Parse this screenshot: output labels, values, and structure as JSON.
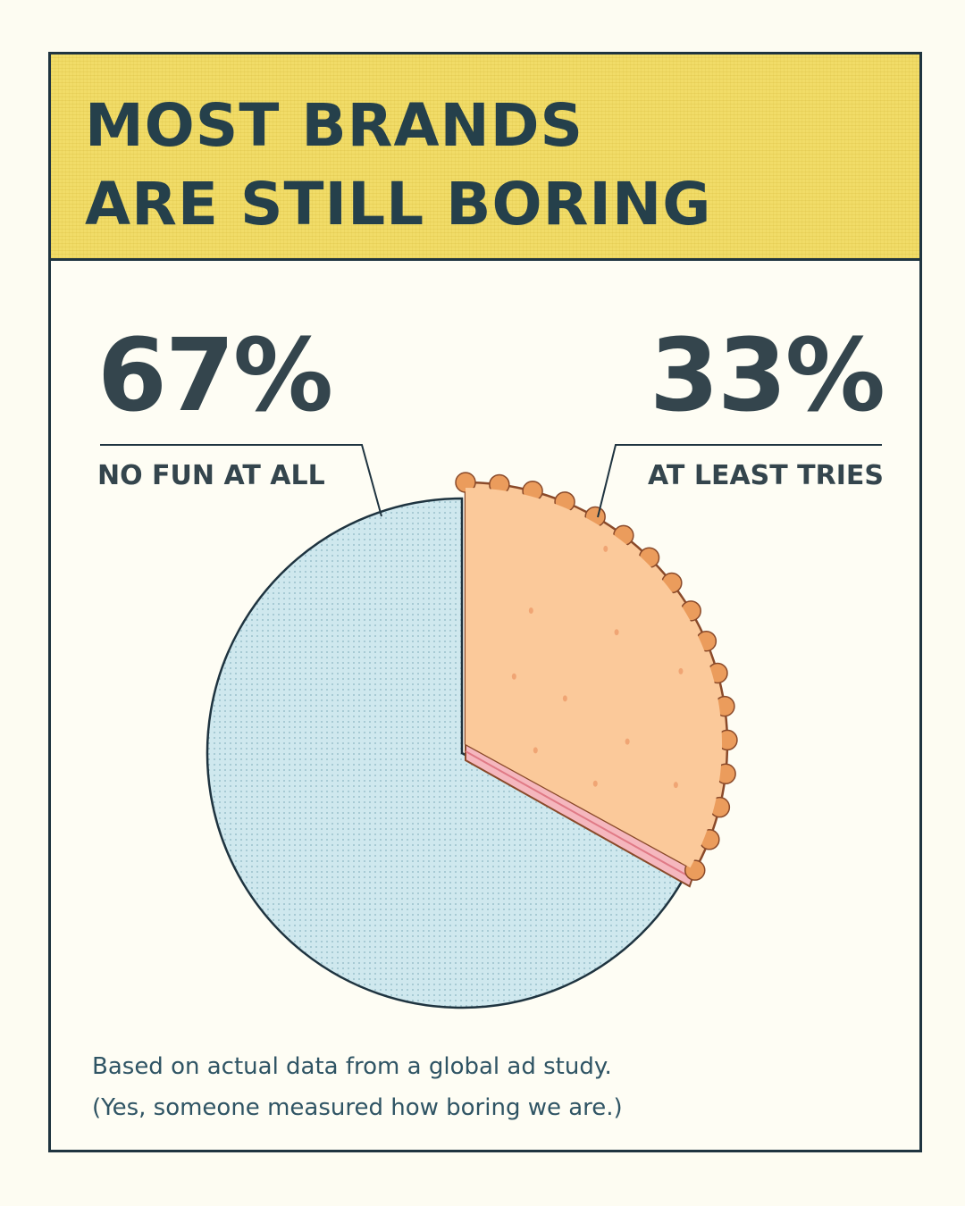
{
  "header": {
    "title_line1": "MOST BRANDS",
    "title_line2": "ARE STILL BORING"
  },
  "chart_data": {
    "type": "pie",
    "title": "MOST BRANDS ARE STILL BORING",
    "slices": [
      {
        "name": "NO FUN AT ALL",
        "value": 67,
        "label": "67%",
        "color": "#cfe8ee"
      },
      {
        "name": "AT LEAST TRIES",
        "value": 33,
        "label": "33%",
        "color": "#fbc99a"
      }
    ]
  },
  "colors": {
    "ink": "#1f3440",
    "header_bg": "#f1dc68",
    "pie_blue": "#cfe8ee",
    "pie_crust": "#eb9c5c",
    "pie_filling": "#fbc99a",
    "pie_layer": "#f5b7be"
  },
  "footnote": {
    "line1": "Based on actual data from a global ad study.",
    "line2": "(Yes, someone measured how boring we are.)"
  }
}
